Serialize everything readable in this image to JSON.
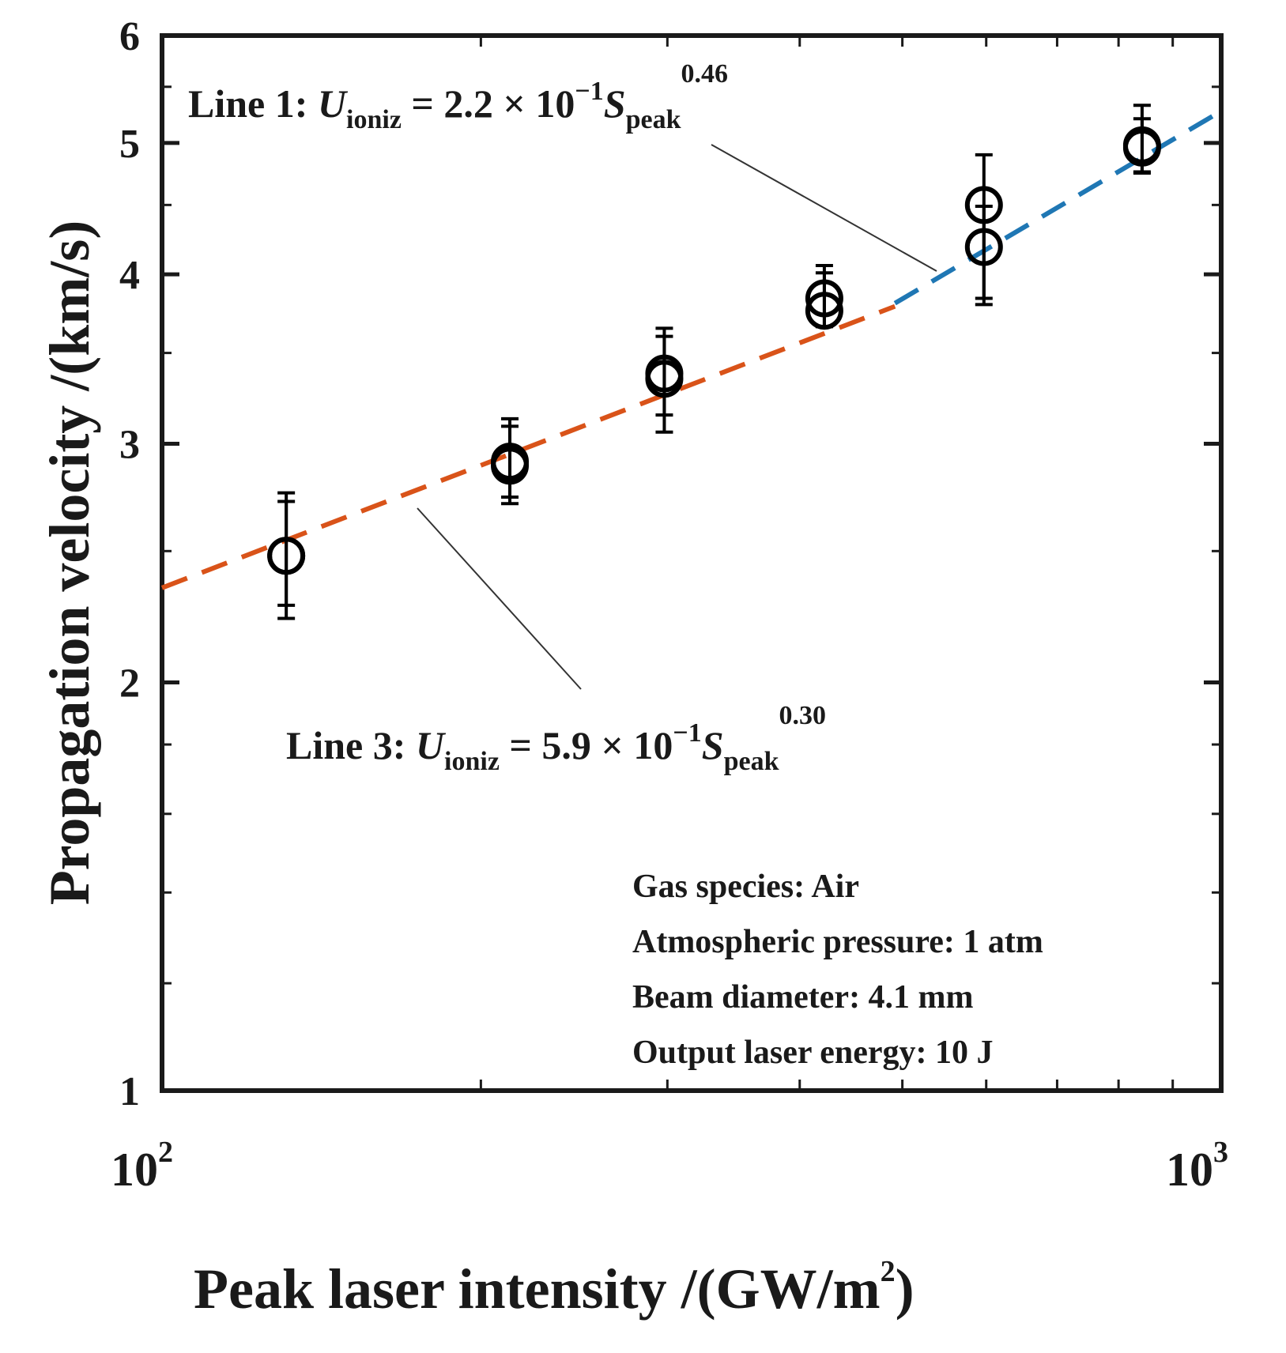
{
  "chart_data": {
    "type": "scatter",
    "xscale": "log",
    "yscale": "log",
    "xlim": [
      100,
      1000
    ],
    "ylim": [
      1,
      6
    ],
    "xlabel": "Peak laser intensity /(GW/m",
    "xlabel_sup": "2",
    "xlabel_end": ")",
    "ylabel": "Propagation velocity /(km/s)",
    "x_tick_labels": [
      {
        "value": 100,
        "base": "10",
        "exp": "2"
      },
      {
        "value": 1000,
        "base": "10",
        "exp": "3"
      }
    ],
    "y_ticks": [
      1,
      2,
      3,
      4,
      5,
      6
    ],
    "y_tick_labels": [
      "1",
      "2",
      "3",
      "4",
      "5",
      "6"
    ],
    "points": [
      {
        "x": 131,
        "y": 2.48,
        "err_low": 0.25,
        "err_high": 0.28
      },
      {
        "x": 131,
        "y": 2.48,
        "err_low": 0.2,
        "err_high": 0.24
      },
      {
        "x": 213,
        "y": 2.91,
        "err_low": 0.2,
        "err_high": 0.22
      },
      {
        "x": 213,
        "y": 2.89,
        "err_low": 0.15,
        "err_high": 0.2
      },
      {
        "x": 298,
        "y": 3.38,
        "err_low": 0.32,
        "err_high": 0.22
      },
      {
        "x": 298,
        "y": 3.35,
        "err_low": 0.2,
        "err_high": 0.3
      },
      {
        "x": 422,
        "y": 3.84,
        "err_low": 0.18,
        "err_high": 0.22
      },
      {
        "x": 422,
        "y": 3.76,
        "err_low": 0.1,
        "err_high": 0.25
      },
      {
        "x": 597,
        "y": 4.5,
        "err_low": 0.7,
        "err_high": 0.4
      },
      {
        "x": 597,
        "y": 4.19,
        "err_low": 0.35,
        "err_high": 0.3
      },
      {
        "x": 842,
        "y": 4.98,
        "err_low": 0.23,
        "err_high": 0.35
      },
      {
        "x": 842,
        "y": 4.96,
        "err_low": 0.2,
        "err_high": 0.25
      }
    ],
    "series": [
      {
        "name": "Line 1",
        "color": "#1f77b4",
        "dash": "dashed",
        "x_range": [
          492,
          1000
        ],
        "coef": 0.22,
        "exponent": 0.46
      },
      {
        "name": "Line 3",
        "color": "#d95319",
        "dash": "dashed",
        "x_range": [
          100,
          492
        ],
        "coef": 0.59,
        "exponent": 0.3
      }
    ],
    "annotations": [
      {
        "id": "line1",
        "label": "Line 1: ",
        "var": "U",
        "var_sub": "ioniz",
        "eq": " = 2.2 × 10",
        "eq_sup": "−1",
        "s": "S",
        "s_sub": "peak",
        "s_sup": "0.46"
      },
      {
        "id": "line3",
        "label": "Line 3: ",
        "var": "U",
        "var_sub": "ioniz",
        "eq": " = 5.9 × 10",
        "eq_sup": "−1",
        "s": "S",
        "s_sub": "peak",
        "s_sup": "0.30"
      }
    ],
    "info_lines": [
      "Gas species: Air",
      "Atmospheric pressure: 1 atm",
      "Beam diameter: 4.1 mm",
      "Output laser energy: 10 J"
    ],
    "grid": false,
    "marker": "open-circle",
    "marker_color": "#000000"
  }
}
